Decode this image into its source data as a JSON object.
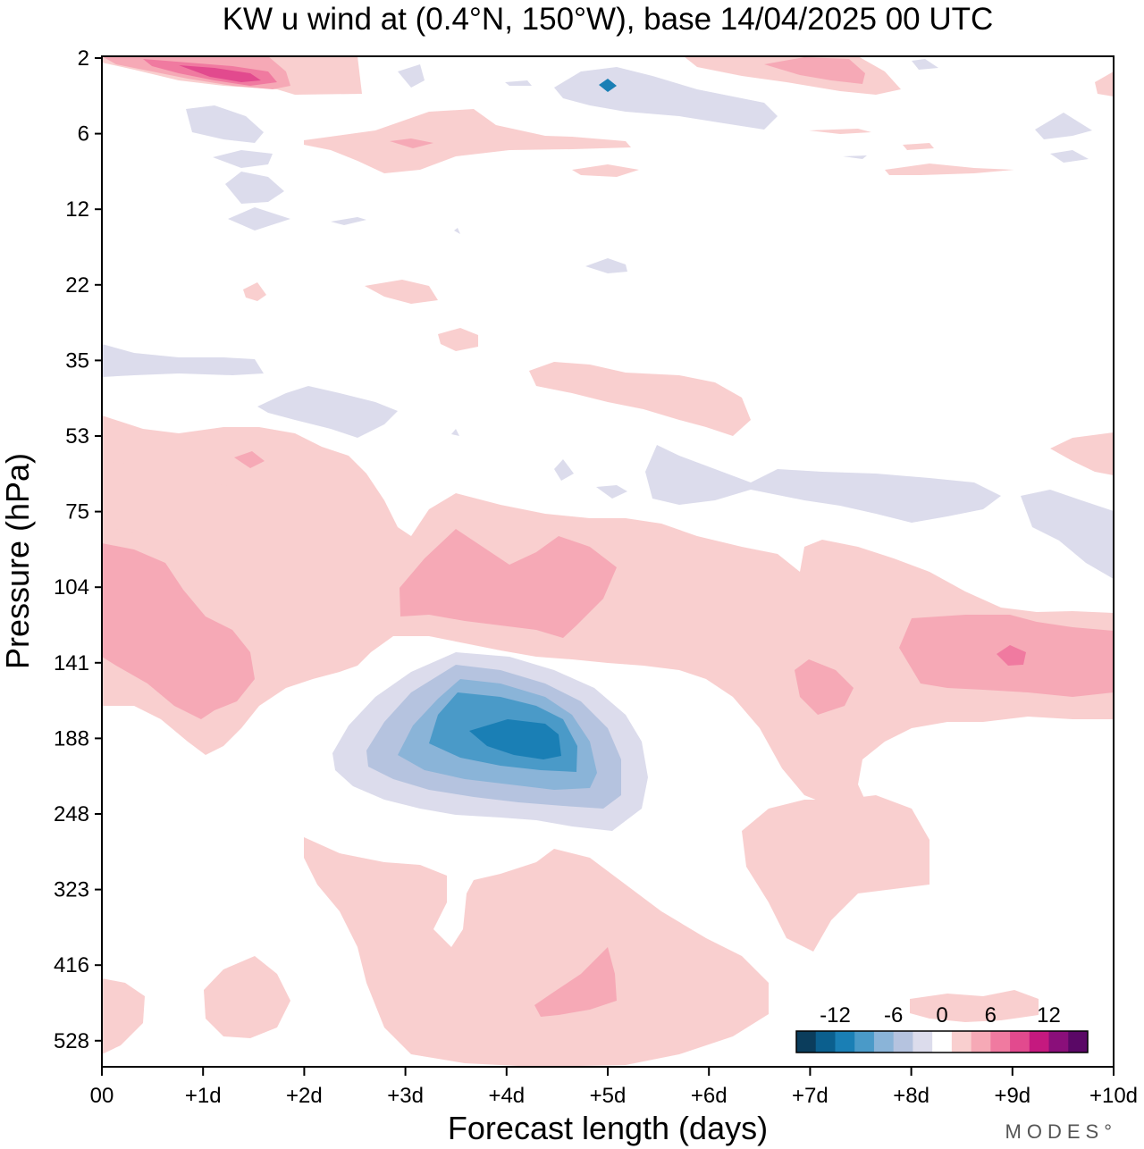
{
  "chart_data": {
    "type": "heatmap",
    "title": "KW u wind at (0.4°N, 150°W),  base 14/04/2025  00 UTC",
    "xlabel": "Forecast length (days)",
    "ylabel": "Pressure (hPa)",
    "x_ticks": [
      "00",
      "+1d",
      "+2d",
      "+3d",
      "+4d",
      "+5d",
      "+6d",
      "+7d",
      "+8d",
      "+9d",
      "+10d"
    ],
    "y_ticks": [
      "2",
      "6",
      "12",
      "22",
      "35",
      "53",
      "75",
      "104",
      "141",
      "188",
      "248",
      "323",
      "416",
      "528"
    ],
    "xlim": [
      0,
      10
    ],
    "y_scale": "ordinal pressure levels (top = 2 hPa, bottom = 528 hPa)",
    "colorbar": {
      "labels": [
        "-12",
        "-6",
        "0",
        "6",
        "12"
      ],
      "levels": [
        -16,
        -14,
        -12,
        -10,
        -8,
        -6,
        -4,
        -2,
        2,
        4,
        6,
        8,
        10,
        12,
        14,
        16
      ],
      "colors": [
        "#0b3d5c",
        "#0b5f8e",
        "#1a7fb5",
        "#4a9ac8",
        "#8ab4d8",
        "#b5c3df",
        "#dcdcec",
        "#ffffff",
        "#f9cfcf",
        "#f6a9b6",
        "#f07aa0",
        "#e24a8e",
        "#c5197f",
        "#8a0f7a",
        "#5a0866"
      ]
    },
    "features": [
      {
        "sign": "negative",
        "peak": -10,
        "x_day": 4.0,
        "pressure_hPa": 188,
        "extent_days": [
          2.3,
          5.4
        ],
        "extent_hPa": [
          141,
          248
        ]
      },
      {
        "sign": "positive",
        "peak": 6,
        "x_day": 4.0,
        "pressure_hPa": 104,
        "extent_days": [
          3.0,
          5.1
        ]
      },
      {
        "sign": "positive",
        "peak": 6,
        "x_day": 0.8,
        "pressure_hPa": 130
      },
      {
        "sign": "positive",
        "peak": 8,
        "x_day": 9.0,
        "pressure_hPa": 141
      },
      {
        "sign": "positive",
        "peak": 10,
        "x_day": 1.5,
        "pressure_hPa": 3
      },
      {
        "sign": "positive",
        "peak": 4,
        "x_day": 5.0,
        "pressure_hPa": 470
      },
      {
        "sign": "negative",
        "peak": -4,
        "x_day": 8.0,
        "pressure_hPa": 70
      }
    ]
  },
  "branding": {
    "logo": "MODES°"
  },
  "colors": {
    "background": "#ffffff",
    "axis": "#000000"
  }
}
